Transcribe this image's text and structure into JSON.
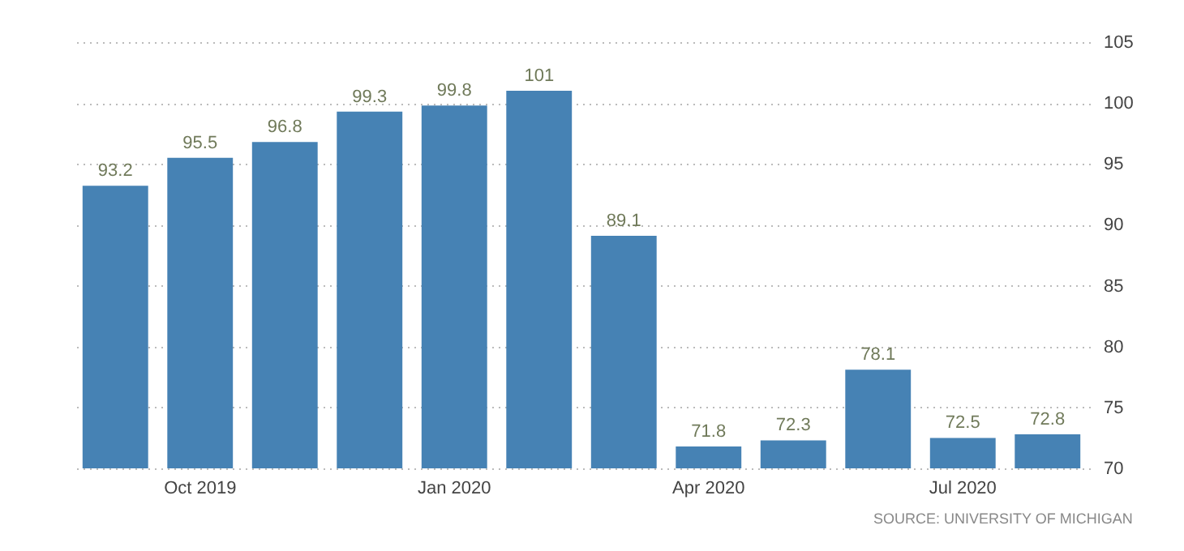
{
  "chart_data": {
    "type": "bar",
    "categories": [
      null,
      "Oct 2019",
      null,
      null,
      "Jan 2020",
      null,
      null,
      "Apr 2020",
      null,
      null,
      "Jul 2020",
      null
    ],
    "values": [
      93.2,
      95.5,
      96.8,
      99.3,
      99.8,
      101,
      89.1,
      71.8,
      72.3,
      78.1,
      72.5,
      72.8
    ],
    "color": "#4682b4",
    "ylim": [
      70,
      105
    ],
    "yticks": [
      70,
      75,
      80,
      85,
      90,
      95,
      100,
      105
    ],
    "grid": "y",
    "data_labels": true,
    "annotations": [
      "SOURCE: UNIVERSITY OF MICHIGAN"
    ]
  }
}
